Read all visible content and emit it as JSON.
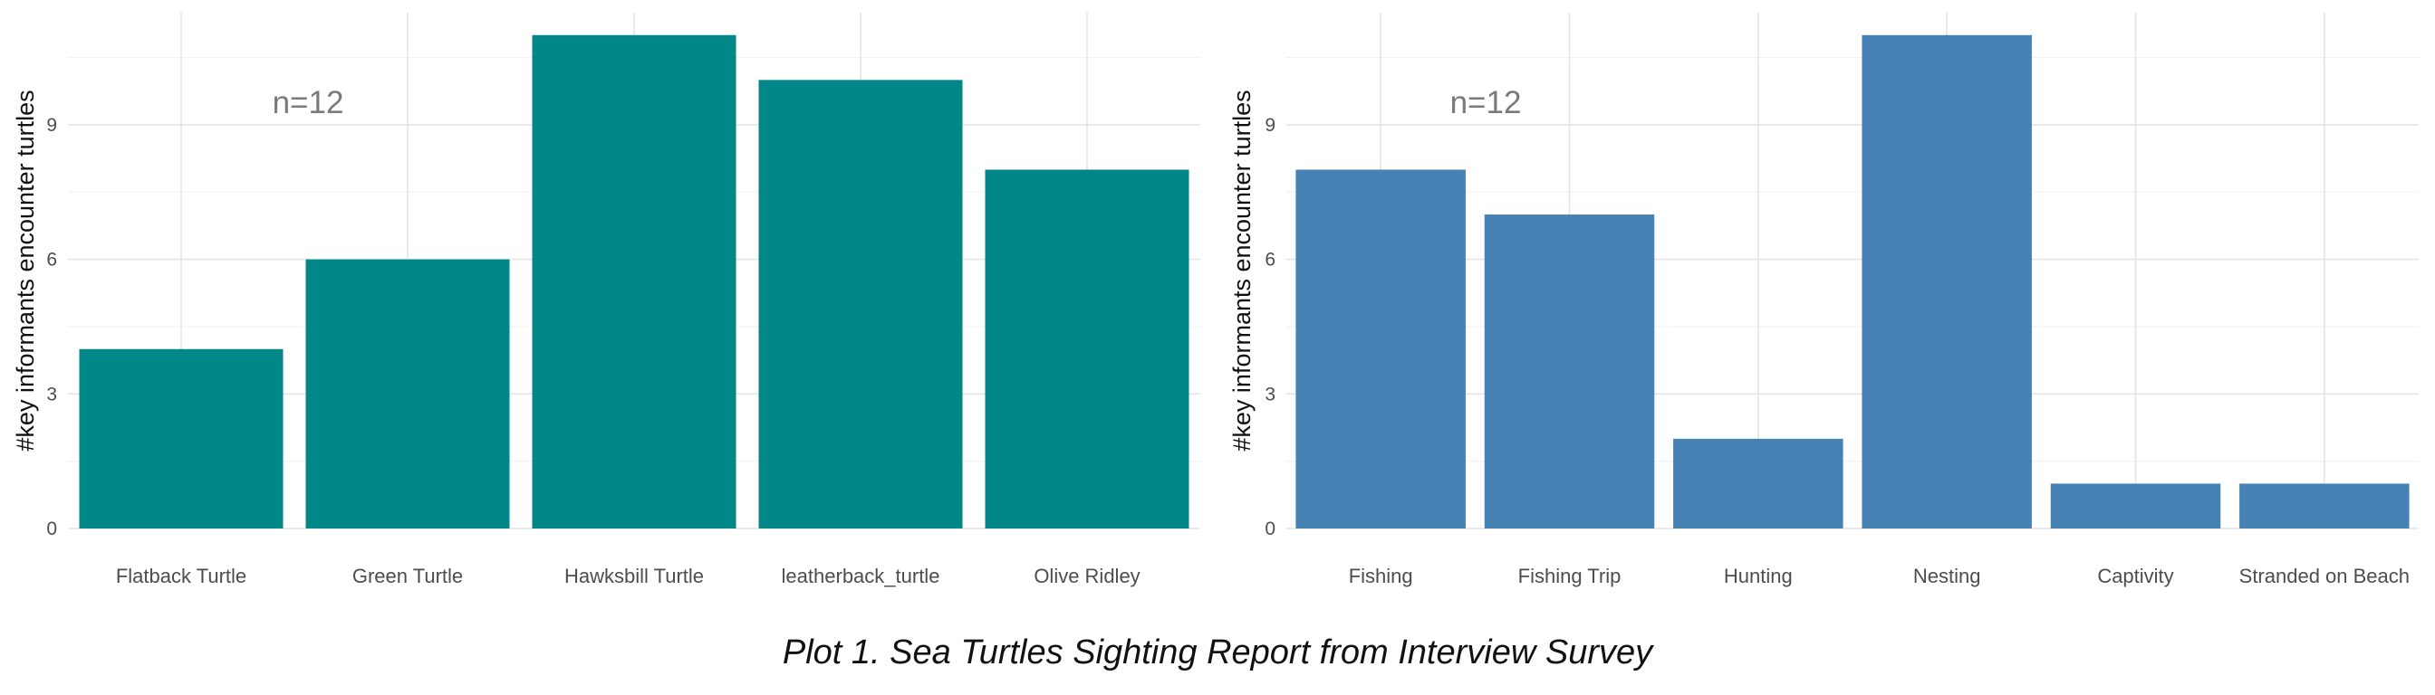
{
  "caption": "Plot 1. Sea Turtles Sighting Report from Interview Survey",
  "chart_data": [
    {
      "type": "bar",
      "title": "",
      "xlabel": "",
      "ylabel": "#key informants encounter turtles",
      "annotation": "n=12",
      "categories": [
        "Flatback Turtle",
        "Green Turtle",
        "Hawksbill Turtle",
        "leatherback_turtle",
        "Olive Ridley"
      ],
      "values": [
        4,
        6,
        11,
        10,
        8
      ],
      "ylim": [
        0,
        11.5
      ],
      "yticks": [
        0,
        3,
        6,
        9
      ],
      "grid": true,
      "color": "#028789"
    },
    {
      "type": "bar",
      "title": "",
      "xlabel": "",
      "ylabel": "#key informants encounter turtles",
      "annotation": "n=12",
      "categories": [
        "Fishing",
        "Fishing Trip",
        "Hunting",
        "Nesting",
        "Captivity",
        "Stranded on Beach"
      ],
      "values": [
        8,
        7,
        2,
        11,
        1,
        1
      ],
      "ylim": [
        0,
        11.5
      ],
      "yticks": [
        0,
        3,
        6,
        9
      ],
      "grid": true,
      "color": "#4682B4"
    }
  ]
}
